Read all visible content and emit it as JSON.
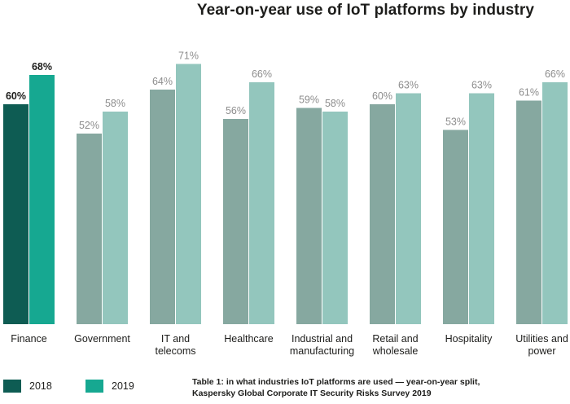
{
  "chart_data": {
    "type": "bar",
    "title": "Year-on-year use of IoT platforms by industry",
    "categories": [
      [
        "Finance"
      ],
      [
        "Government"
      ],
      [
        "IT and",
        "telecoms"
      ],
      [
        "Healthcare"
      ],
      [
        "Industrial and",
        "manufacturing"
      ],
      [
        "Retail and",
        "wholesale"
      ],
      [
        "Hospitality"
      ],
      [
        "Utilities and",
        "power"
      ]
    ],
    "series": [
      {
        "name": "2018",
        "values": [
          60,
          52,
          64,
          56,
          59,
          60,
          53,
          61
        ]
      },
      {
        "name": "2019",
        "values": [
          68,
          58,
          71,
          66,
          58,
          63,
          63,
          66
        ]
      }
    ],
    "value_suffix": "%",
    "ylim": [
      0,
      80
    ],
    "grid": false,
    "legend_position": "bottom-left",
    "colors": {
      "highlight_2018": "#0e5c53",
      "highlight_2019": "#16a891",
      "muted_2018": "#86a8a0",
      "muted_2019": "#93c6bd",
      "highlight_label": "#1d1d1b",
      "muted_label": "#8d8d8d"
    },
    "highlighted_category_index": 0
  },
  "legend": [
    {
      "label": "2018",
      "color": "#0e5c53"
    },
    {
      "label": "2019",
      "color": "#16a891"
    }
  ],
  "caption": {
    "line1": "Table 1: in what industries IoT platforms are used — year-on-year split,",
    "line2": "Kaspersky Global Corporate IT Security Risks Survey 2019"
  }
}
